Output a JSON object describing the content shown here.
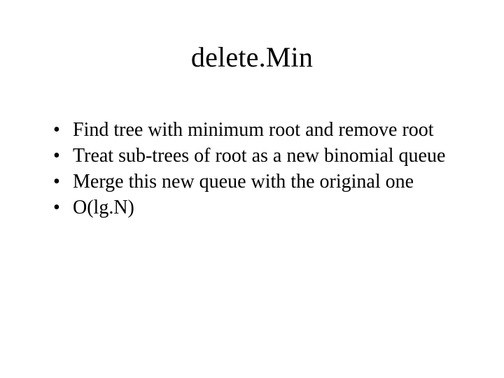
{
  "slide": {
    "title": "delete.Min",
    "title_fontsize": 40,
    "body_fontsize": 28,
    "text_color": "#000000",
    "background_color": "#ffffff",
    "font_family": "Times New Roman",
    "bullets": [
      "Find tree with minimum root and remove root",
      "Treat sub-trees of root as a new binomial queue",
      "Merge this new queue with the original one",
      "O(lg.N)"
    ]
  }
}
